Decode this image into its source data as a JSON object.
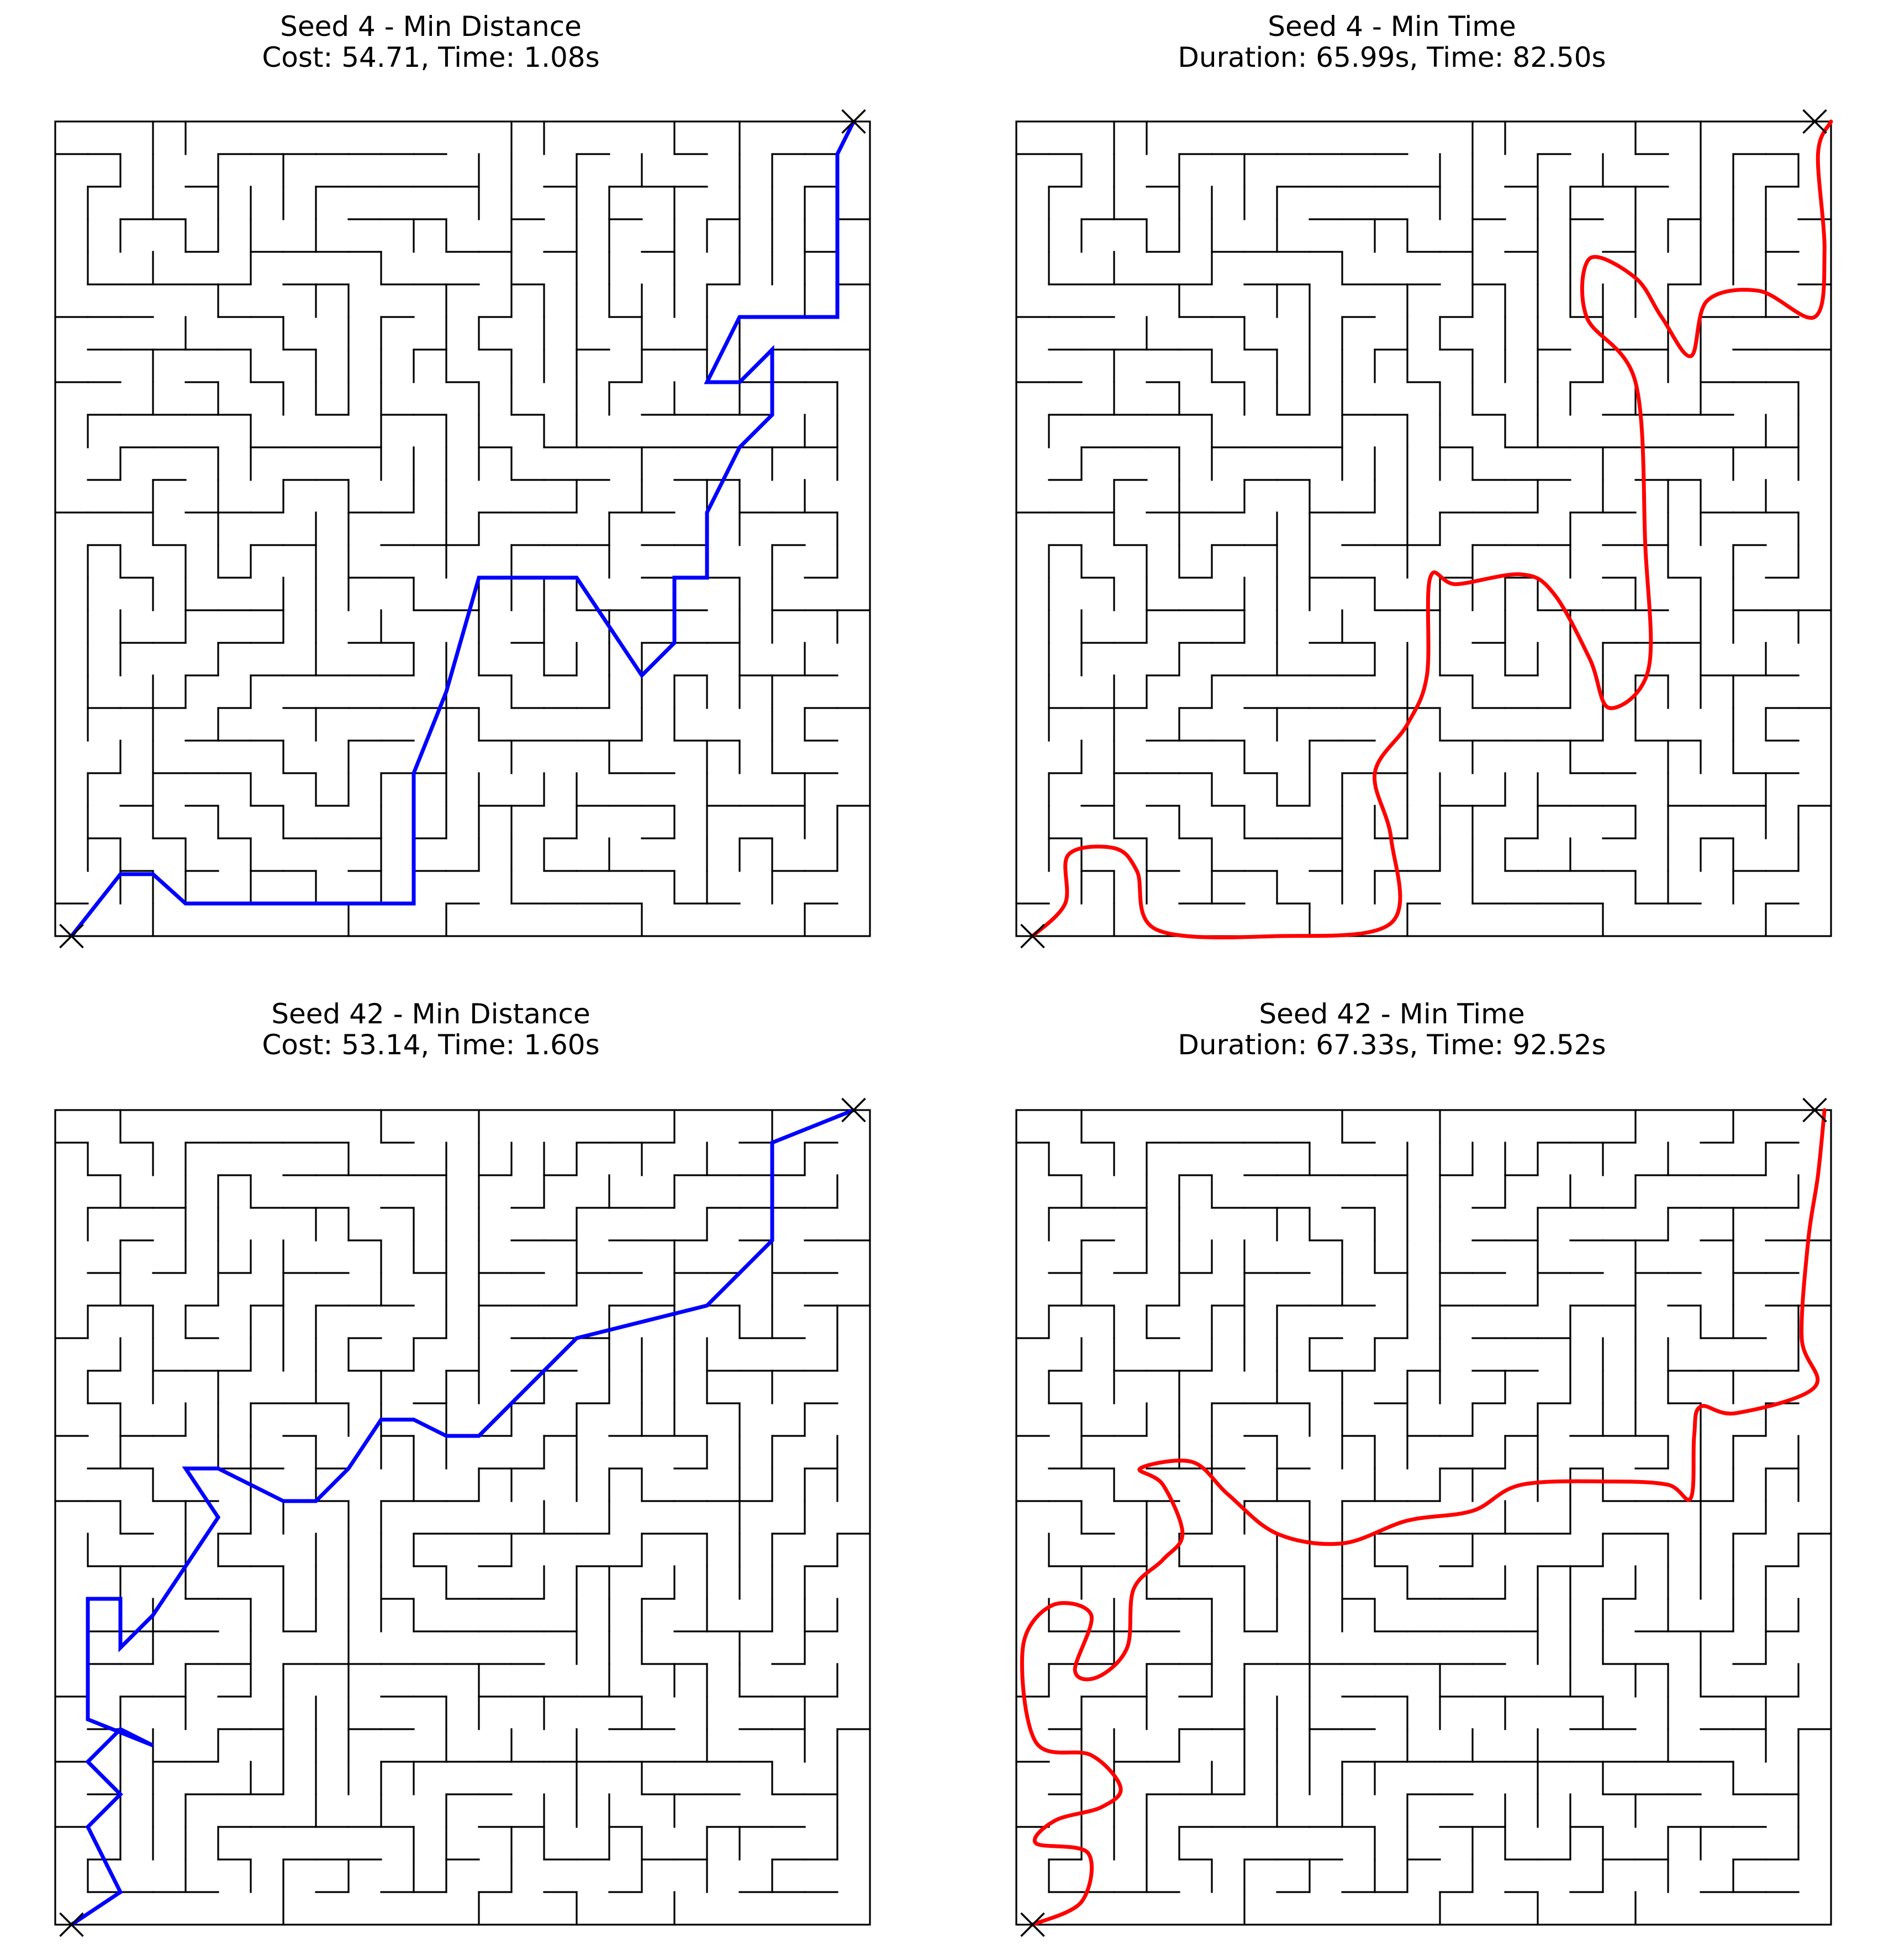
{
  "panels": [
    {
      "title": "Seed 4 - Min Distance",
      "subtitle": "Cost: 54.71, Time: 1.08s",
      "path_color": "#0000ff",
      "path_style": "polyline"
    },
    {
      "title": "Seed 4 - Min Time",
      "subtitle": "Duration: 65.99s, Time: 82.50s",
      "path_color": "#ff0000",
      "path_style": "smooth"
    },
    {
      "title": "Seed 42 - Min Distance",
      "subtitle": "Cost: 53.14, Time: 1.60s",
      "path_color": "#0000ff",
      "path_style": "polyline"
    },
    {
      "title": "Seed 42 - Min Time",
      "subtitle": "Duration: 67.33s, Time: 92.52s",
      "path_color": "#ff0000",
      "path_style": "smooth"
    }
  ],
  "wall_color": "#000000",
  "marker_icon": "x-marker-icon"
}
